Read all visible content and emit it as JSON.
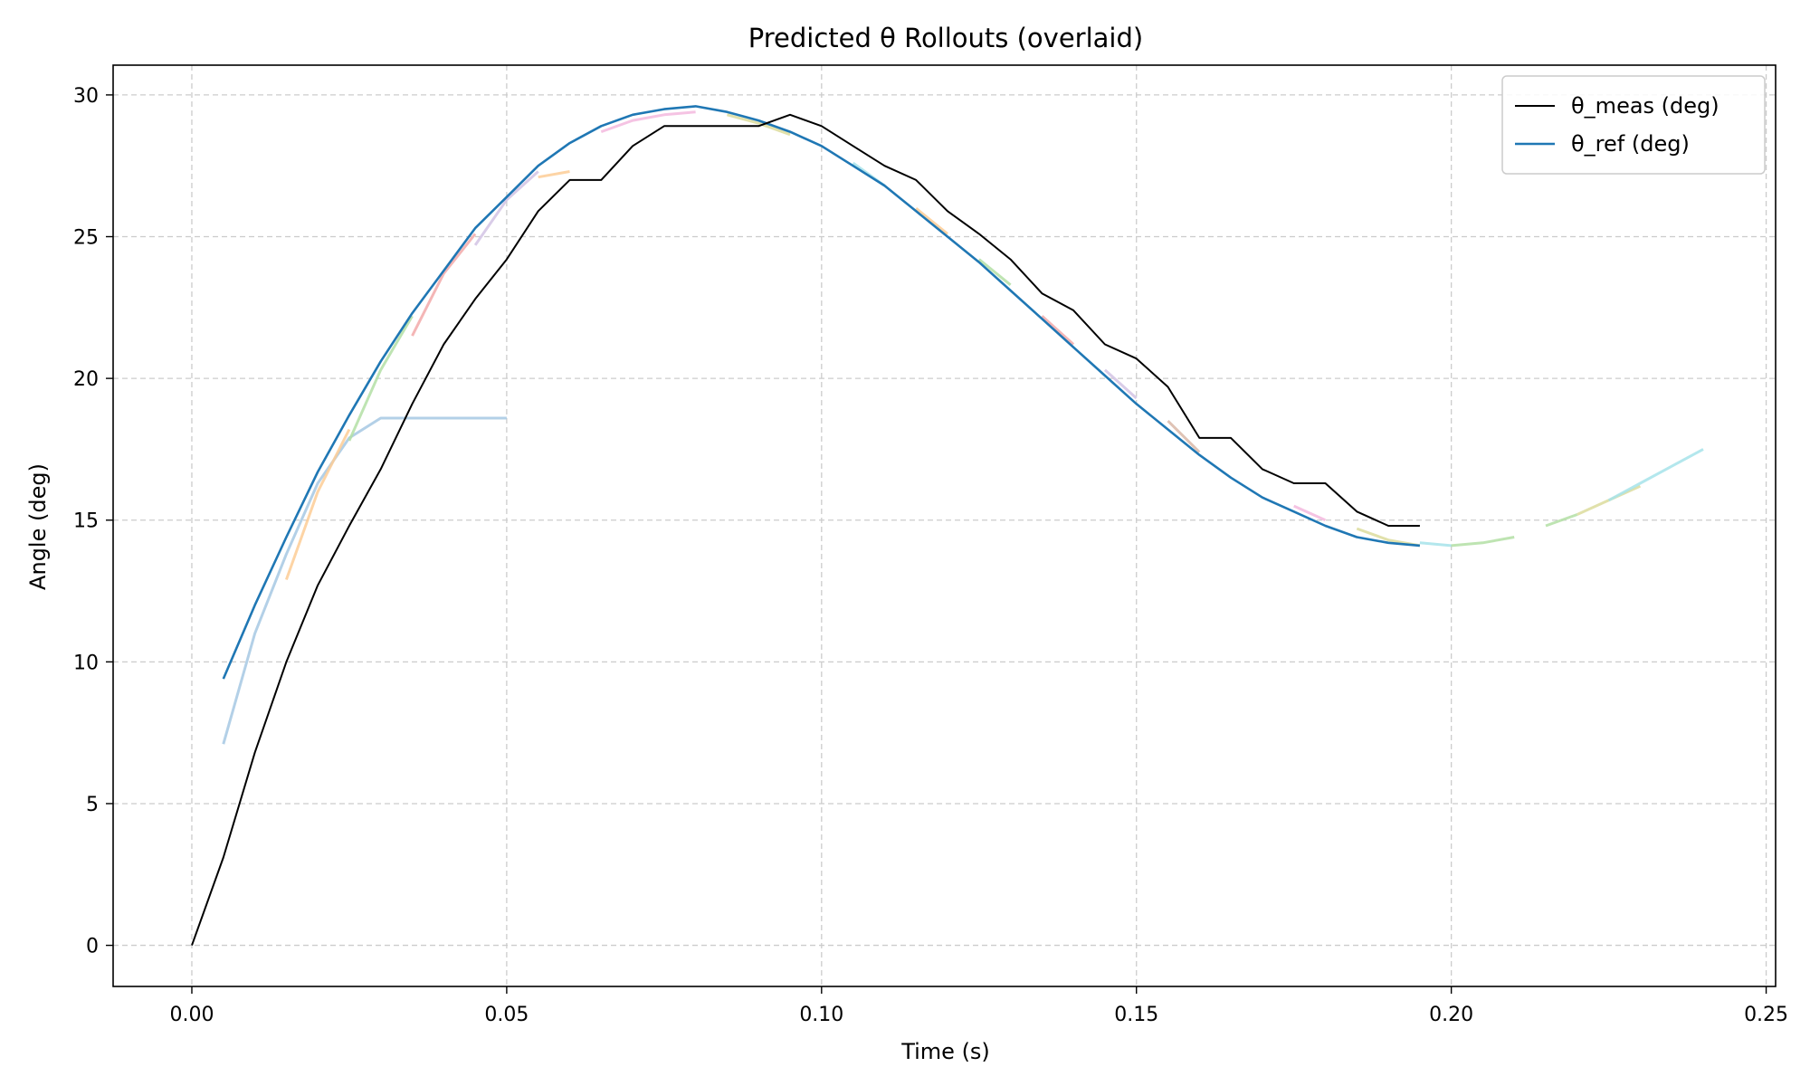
{
  "chart_data": {
    "type": "line",
    "title": "Predicted θ Rollouts (overlaid)",
    "xlabel": "Time (s)",
    "ylabel": "Angle (deg)",
    "xlim": [
      -0.0125,
      0.2515
    ],
    "ylim": [
      -1.45,
      31.05
    ],
    "xticks": [
      0.0,
      0.05,
      0.1,
      0.15,
      0.2,
      0.25
    ],
    "xtick_labels": [
      "0.00",
      "0.05",
      "0.10",
      "0.15",
      "0.20",
      "0.25"
    ],
    "yticks": [
      0,
      5,
      10,
      15,
      20,
      25,
      30
    ],
    "ytick_labels": [
      "0",
      "5",
      "10",
      "15",
      "20",
      "25",
      "30"
    ],
    "grid": true,
    "legend_position": "top-right",
    "series": [
      {
        "name": "θ_meas (deg)",
        "color": "#000000",
        "in_legend": true,
        "x": [
          0.0,
          0.005,
          0.01,
          0.015,
          0.02,
          0.025,
          0.03,
          0.035,
          0.04,
          0.045,
          0.05,
          0.055,
          0.06,
          0.065,
          0.07,
          0.075,
          0.08,
          0.085,
          0.09,
          0.095,
          0.1,
          0.105,
          0.11,
          0.115,
          0.12,
          0.125,
          0.13,
          0.135,
          0.14,
          0.145,
          0.15,
          0.155,
          0.16,
          0.165,
          0.17,
          0.175,
          0.18,
          0.185,
          0.19,
          0.195
        ],
        "y": [
          0.0,
          3.1,
          6.8,
          10.0,
          12.7,
          14.8,
          16.8,
          19.1,
          21.2,
          22.8,
          24.2,
          25.9,
          27.0,
          27.0,
          28.2,
          28.9,
          28.9,
          28.9,
          28.9,
          29.3,
          28.9,
          28.2,
          27.5,
          27.0,
          25.9,
          25.1,
          24.2,
          23.0,
          22.4,
          21.2,
          20.7,
          19.7,
          17.9,
          17.9,
          16.8,
          16.3,
          16.3,
          15.3,
          14.8,
          14.8
        ]
      },
      {
        "name": "θ_ref (deg)",
        "color": "#1f77b4",
        "in_legend": true,
        "x": [
          0.005,
          0.01,
          0.015,
          0.02,
          0.025,
          0.03,
          0.035,
          0.04,
          0.045,
          0.05,
          0.055,
          0.06,
          0.065,
          0.07,
          0.075,
          0.08,
          0.085,
          0.09,
          0.095,
          0.1,
          0.105,
          0.11,
          0.115,
          0.12,
          0.125,
          0.13,
          0.135,
          0.14,
          0.145,
          0.15,
          0.155,
          0.16,
          0.165,
          0.17,
          0.175,
          0.18,
          0.185,
          0.19,
          0.195
        ],
        "y": [
          9.4,
          12.0,
          14.4,
          16.7,
          18.7,
          20.6,
          22.3,
          23.8,
          25.3,
          26.4,
          27.5,
          28.3,
          28.9,
          29.3,
          29.5,
          29.6,
          29.4,
          29.1,
          28.7,
          28.2,
          27.5,
          26.8,
          25.9,
          25.0,
          24.1,
          23.1,
          22.1,
          21.1,
          20.1,
          19.1,
          18.2,
          17.3,
          16.5,
          15.8,
          15.3,
          14.8,
          14.4,
          14.2,
          14.1
        ]
      },
      {
        "color": "#a6c8e3",
        "in_legend": false,
        "x": [
          0.005,
          0.01,
          0.015,
          0.02,
          0.025,
          0.03,
          0.035,
          0.04,
          0.045,
          0.05
        ],
        "y": [
          7.1,
          11.0,
          13.8,
          16.3,
          17.9,
          18.6,
          18.6,
          18.6,
          18.6,
          18.6
        ]
      },
      {
        "color": "#fdcc95",
        "in_legend": false,
        "x": [
          0.015,
          0.02,
          0.025
        ],
        "y": [
          12.9,
          16.0,
          18.2
        ]
      },
      {
        "color": "#b3dfa5",
        "in_legend": false,
        "x": [
          0.025,
          0.03,
          0.035
        ],
        "y": [
          17.8,
          20.3,
          22.2
        ]
      },
      {
        "color": "#f2a9a9",
        "in_legend": false,
        "x": [
          0.035,
          0.04,
          0.045
        ],
        "y": [
          21.5,
          23.7,
          25.1
        ]
      },
      {
        "color": "#d2c3e4",
        "in_legend": false,
        "x": [
          0.045,
          0.05,
          0.055
        ],
        "y": [
          24.7,
          26.3,
          27.3
        ]
      },
      {
        "color": "#fdcc95",
        "in_legend": false,
        "x": [
          0.055,
          0.06
        ],
        "y": [
          27.1,
          27.3
        ]
      },
      {
        "color": "#f3b9de",
        "in_legend": false,
        "x": [
          0.065,
          0.07,
          0.075,
          0.08
        ],
        "y": [
          28.7,
          29.1,
          29.3,
          29.4
        ]
      },
      {
        "color": "#dcdc9c",
        "in_legend": false,
        "x": [
          0.085,
          0.09,
          0.095
        ],
        "y": [
          29.3,
          29.0,
          28.6
        ]
      },
      {
        "color": "#a6e3ea",
        "in_legend": false,
        "x": [
          0.105,
          0.11
        ],
        "y": [
          27.6,
          26.8
        ]
      },
      {
        "color": "#fdcc95",
        "in_legend": false,
        "x": [
          0.115,
          0.12
        ],
        "y": [
          26.0,
          25.1
        ]
      },
      {
        "color": "#b3dfa5",
        "in_legend": false,
        "x": [
          0.125,
          0.13
        ],
        "y": [
          24.2,
          23.3
        ]
      },
      {
        "color": "#f2a9a9",
        "in_legend": false,
        "x": [
          0.135,
          0.14
        ],
        "y": [
          22.2,
          21.2
        ]
      },
      {
        "color": "#d2c3e4",
        "in_legend": false,
        "x": [
          0.145,
          0.15
        ],
        "y": [
          20.3,
          19.3
        ]
      },
      {
        "color": "#d9b8a8",
        "in_legend": false,
        "x": [
          0.155,
          0.16
        ],
        "y": [
          18.5,
          17.4
        ]
      },
      {
        "color": "#f3b9de",
        "in_legend": false,
        "x": [
          0.175,
          0.18
        ],
        "y": [
          15.5,
          15.0
        ]
      },
      {
        "color": "#dcdc9c",
        "in_legend": false,
        "x": [
          0.185,
          0.19,
          0.195
        ],
        "y": [
          14.7,
          14.3,
          14.1
        ]
      },
      {
        "color": "#a6e3ea",
        "in_legend": false,
        "x": [
          0.195,
          0.2
        ],
        "y": [
          14.2,
          14.1
        ]
      },
      {
        "color": "#b3dfa5",
        "in_legend": false,
        "x": [
          0.2,
          0.205,
          0.21
        ],
        "y": [
          14.1,
          14.2,
          14.4
        ]
      },
      {
        "color": "#b3dfa5",
        "in_legend": false,
        "x": [
          0.215,
          0.22
        ],
        "y": [
          14.8,
          15.2
        ]
      },
      {
        "color": "#dcdc9c",
        "in_legend": false,
        "x": [
          0.22,
          0.225,
          0.23
        ],
        "y": [
          15.2,
          15.7,
          16.2
        ]
      },
      {
        "color": "#a6e3ea",
        "in_legend": false,
        "x": [
          0.225,
          0.23,
          0.235,
          0.24
        ],
        "y": [
          15.7,
          16.3,
          16.9,
          17.5
        ]
      }
    ]
  }
}
